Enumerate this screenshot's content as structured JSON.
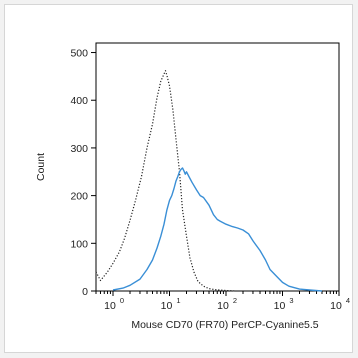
{
  "chart_data": {
    "type": "line",
    "xlabel": "Mouse CD70 (FR70) PerCP-Cyanine5.5",
    "ylabel": "Count",
    "x_scale": "log",
    "xlim": [
      0.5,
      10000
    ],
    "ylim": [
      0,
      520
    ],
    "x_ticks": [
      {
        "value": 1,
        "base": "10",
        "exp": "0"
      },
      {
        "value": 10,
        "base": "10",
        "exp": "1"
      },
      {
        "value": 100,
        "base": "10",
        "exp": "2"
      },
      {
        "value": 1000,
        "base": "10",
        "exp": "3"
      },
      {
        "value": 10000,
        "base": "10",
        "exp": "4"
      }
    ],
    "y_ticks": [
      0,
      100,
      200,
      300,
      400,
      500
    ],
    "series": [
      {
        "style": "dotted",
        "color": "#222222",
        "points": [
          [
            0.5,
            40
          ],
          [
            0.6,
            22
          ],
          [
            0.8,
            40
          ],
          [
            1.0,
            58
          ],
          [
            1.3,
            82
          ],
          [
            1.6,
            110
          ],
          [
            2.0,
            148
          ],
          [
            2.5,
            190
          ],
          [
            3.2,
            240
          ],
          [
            4.0,
            300
          ],
          [
            5.0,
            350
          ],
          [
            6.0,
            405
          ],
          [
            7.0,
            440
          ],
          [
            8.0,
            455
          ],
          [
            8.5,
            462
          ],
          [
            9.0,
            452
          ],
          [
            10.0,
            430
          ],
          [
            11.5,
            380
          ],
          [
            13.0,
            320
          ],
          [
            15.0,
            250
          ],
          [
            17.0,
            170
          ],
          [
            20.0,
            115
          ],
          [
            23.0,
            70
          ],
          [
            27.0,
            40
          ],
          [
            32.0,
            20
          ],
          [
            40.0,
            10
          ],
          [
            50.0,
            5
          ],
          [
            63.0,
            3
          ],
          [
            80.0,
            2
          ],
          [
            100.0,
            1
          ],
          [
            150.0,
            0
          ]
        ]
      },
      {
        "style": "solid",
        "color": "#3a8fd6",
        "points": [
          [
            1.0,
            2
          ],
          [
            1.5,
            6
          ],
          [
            2.0,
            12
          ],
          [
            3.0,
            25
          ],
          [
            4.0,
            45
          ],
          [
            5.0,
            65
          ],
          [
            6.0,
            90
          ],
          [
            7.0,
            115
          ],
          [
            8.0,
            140
          ],
          [
            9.0,
            170
          ],
          [
            10.0,
            190
          ],
          [
            11.0,
            200
          ],
          [
            12.0,
            215
          ],
          [
            13.0,
            230
          ],
          [
            14.0,
            240
          ],
          [
            15.0,
            250
          ],
          [
            16.0,
            255
          ],
          [
            17.0,
            258
          ],
          [
            18.0,
            252
          ],
          [
            19.0,
            245
          ],
          [
            20.0,
            250
          ],
          [
            22.0,
            240
          ],
          [
            25.0,
            228
          ],
          [
            30.0,
            212
          ],
          [
            35.0,
            200
          ],
          [
            40.0,
            196
          ],
          [
            50.0,
            180
          ],
          [
            60.0,
            160
          ],
          [
            70.0,
            150
          ],
          [
            80.0,
            146
          ],
          [
            100.0,
            140
          ],
          [
            130.0,
            135
          ],
          [
            160.0,
            132
          ],
          [
            200.0,
            128
          ],
          [
            250.0,
            120
          ],
          [
            300.0,
            105
          ],
          [
            400.0,
            85
          ],
          [
            500.0,
            65
          ],
          [
            600.0,
            45
          ],
          [
            800.0,
            30
          ],
          [
            1000.0,
            18
          ],
          [
            1300.0,
            10
          ],
          [
            2000.0,
            4
          ],
          [
            3000.0,
            2
          ],
          [
            5000.0,
            0
          ]
        ]
      }
    ]
  }
}
